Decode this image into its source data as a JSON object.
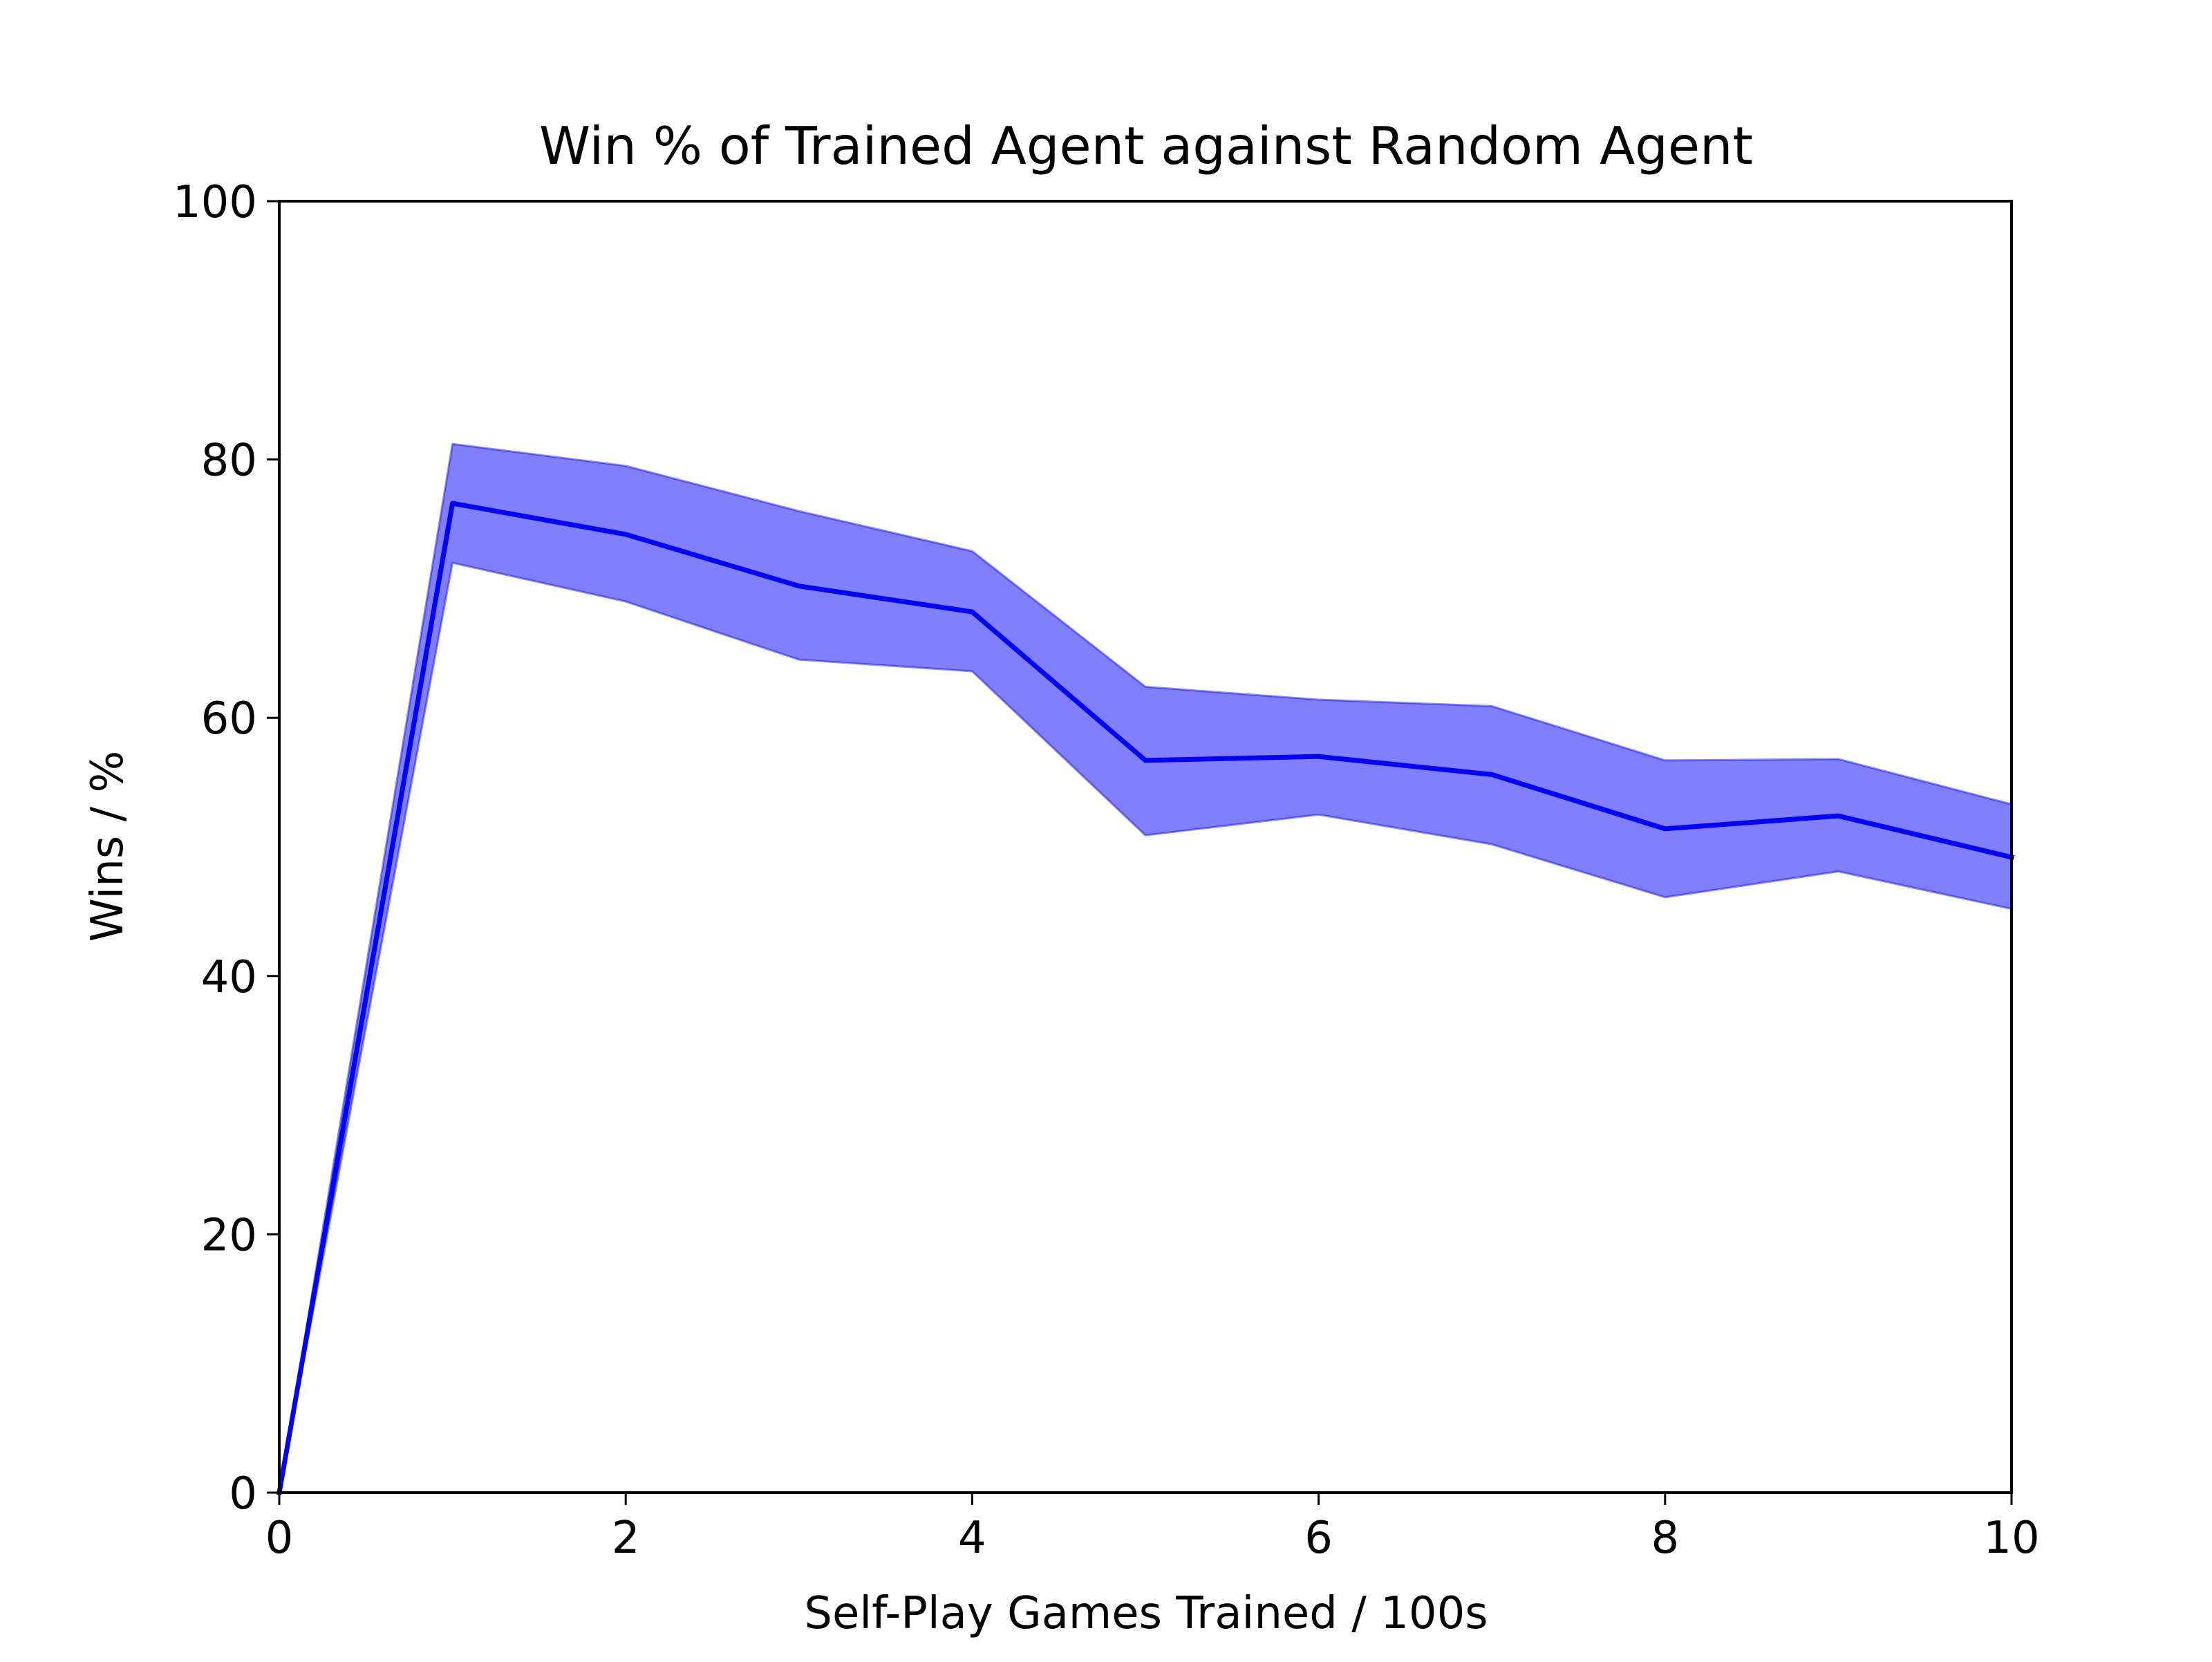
{
  "chart_data": {
    "type": "line",
    "title": "Win % of Trained Agent against Random Agent",
    "xlabel": "Self-Play Games Trained / 100s",
    "ylabel": "Wins / %",
    "xlim": [
      0,
      10
    ],
    "ylim": [
      0,
      100
    ],
    "xticks": [
      0,
      2,
      4,
      6,
      8,
      10
    ],
    "yticks": [
      0,
      20,
      40,
      60,
      80,
      100
    ],
    "grid": false,
    "x": [
      0,
      1,
      2,
      3,
      4,
      5,
      6,
      7,
      8,
      9,
      10
    ],
    "series": [
      {
        "values": [
          0,
          76.6,
          74.2,
          70.2,
          68.2,
          56.7,
          57.0,
          55.6,
          51.4,
          52.4,
          49.2
        ],
        "lower": [
          0,
          72.0,
          69.0,
          64.5,
          63.6,
          50.9,
          52.5,
          50.2,
          46.1,
          48.1,
          45.2
        ],
        "upper": [
          0,
          81.2,
          79.5,
          76.0,
          72.9,
          62.4,
          61.4,
          60.9,
          56.7,
          56.8,
          53.3
        ],
        "color": "#0000ff",
        "band_color": "#8080ff"
      }
    ]
  }
}
